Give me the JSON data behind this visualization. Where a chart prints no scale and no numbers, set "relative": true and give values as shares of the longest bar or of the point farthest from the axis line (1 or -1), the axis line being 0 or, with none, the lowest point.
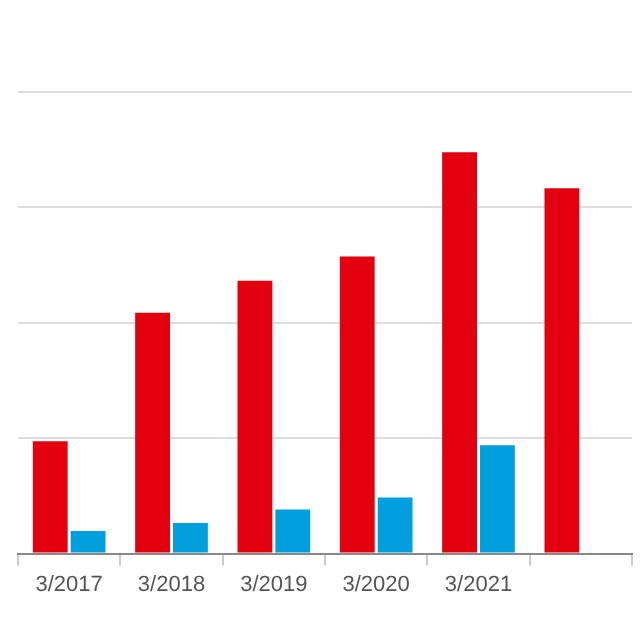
{
  "chart_data": {
    "type": "bar",
    "relative": true,
    "grid": "y",
    "legend": false,
    "categories": [
      "3/2017",
      "3/2018",
      "3/2019",
      "3/2020",
      "3/2021",
      null
    ],
    "series": [
      {
        "color": "#e3000f",
        "values": [
          0.28,
          0.6,
          0.68,
          0.74,
          1,
          0.91
        ]
      },
      {
        "color": "#00a0df",
        "values": [
          0.056,
          0.076,
          0.11,
          0.14,
          0.27,
          null
        ]
      }
    ]
  }
}
